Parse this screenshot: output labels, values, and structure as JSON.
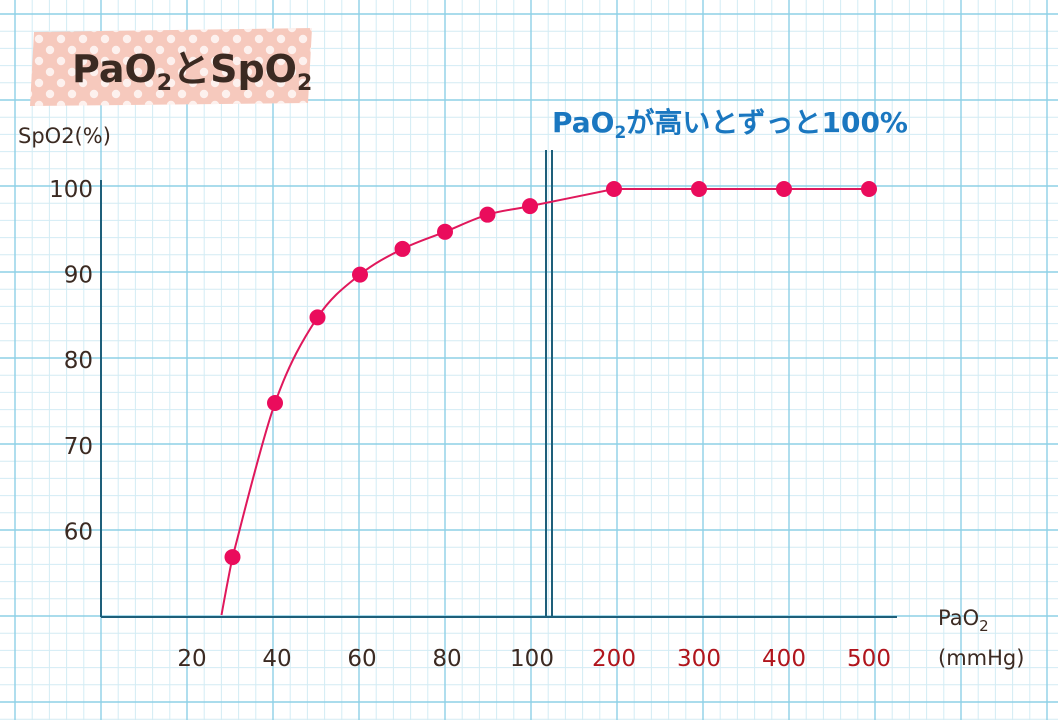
{
  "colors": {
    "grid_minor": "#d3ecf4",
    "grid_major": "#8ed0e6",
    "axis": "#1e5f7a",
    "curve": "#e0185c",
    "marker": "#ea0c5c",
    "tape": "#f6c9bd",
    "tape_dots": "#ffffff",
    "annotation": "#1a77c0",
    "tick_dark": "#3b2a22",
    "tick_red": "#b0151d"
  },
  "title": {
    "main": "PaO",
    "sub1": "2",
    "mid": "とSpO",
    "sub2": "2"
  },
  "annotation": {
    "main": "PaO",
    "sub": "2",
    "rest": "が高いとずっと100%"
  },
  "chart_data": {
    "type": "line",
    "title": "PaO2とSpO2",
    "ylabel": "SpO2(%)",
    "xlabel_main": "PaO",
    "xlabel_sub": "2",
    "xlabel_unit": "(mmHg)",
    "ylim": [
      50,
      100
    ],
    "y_ticks": [
      60,
      70,
      80,
      90,
      100
    ],
    "x_ticks_linear": [
      20,
      40,
      60,
      80,
      100
    ],
    "x_ticks_compressed": [
      200,
      300,
      400,
      500
    ],
    "axis_break_after": 100,
    "grid": true,
    "series": [
      {
        "x": [
          30,
          40,
          50,
          60,
          70,
          80,
          90,
          100,
          200,
          300,
          400,
          500
        ],
        "y": [
          57,
          75,
          85,
          90,
          93,
          95,
          97,
          98,
          100,
          100,
          100,
          100
        ]
      }
    ]
  }
}
